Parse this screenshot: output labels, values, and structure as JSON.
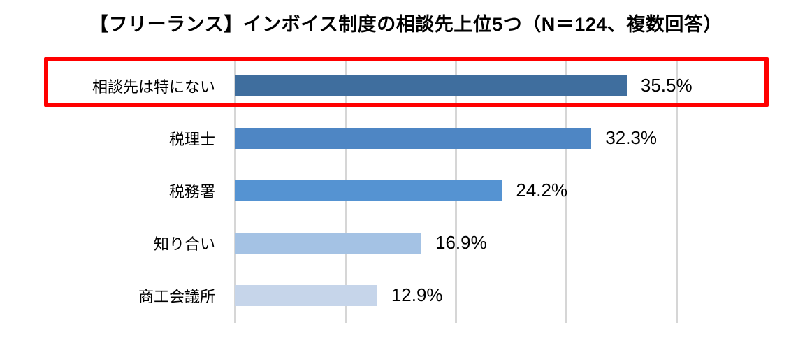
{
  "title": "【フリーランス】インボイス制度の相談先上位5つ（N＝124、複数回答）",
  "chart_data": {
    "type": "bar",
    "orientation": "horizontal",
    "title": "【フリーランス】インボイス制度の相談先上位5つ（N＝124、複数回答）",
    "n": 124,
    "categories": [
      "相談先は特にない",
      "税理士",
      "税務署",
      "知り合い",
      "商工会議所"
    ],
    "values": [
      35.5,
      32.3,
      24.2,
      16.9,
      12.9
    ],
    "value_labels": [
      "35.5%",
      "32.3%",
      "24.2%",
      "16.9%",
      "12.9%"
    ],
    "bar_colors": [
      "#3F6E9E",
      "#4E86C4",
      "#5593D2",
      "#A4C2E4",
      "#C6D5EA"
    ],
    "xlim": [
      0,
      40
    ],
    "gridline_interval": 10,
    "grid": true,
    "legend": "none",
    "highlight": {
      "row_index": 0,
      "category": "相談先は特にない",
      "style": "red-outline"
    }
  },
  "colors": {
    "background": "#FFFFFF",
    "text": "#000000",
    "gridline": "#D6D6D6",
    "highlight_border": "#FF0000"
  }
}
